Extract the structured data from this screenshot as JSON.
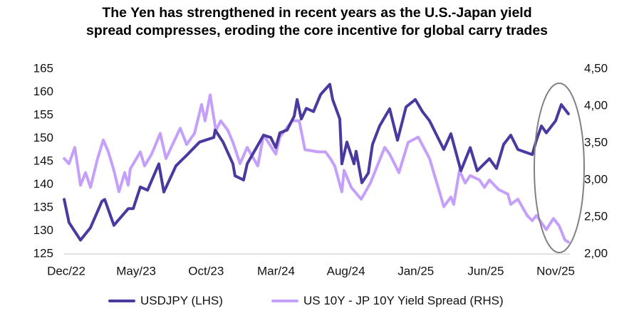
{
  "chart_data": {
    "type": "line",
    "title_lines": [
      "The Yen has strengthened in recent years as the U.S.-Japan yield",
      "spread compresses, eroding the core incentive for global carry trades"
    ],
    "x_unit": "months since Dec/22",
    "x_ticks": [
      {
        "t": 0,
        "label": "Dec/22"
      },
      {
        "t": 5,
        "label": "May/23"
      },
      {
        "t": 10,
        "label": "Oct/23"
      },
      {
        "t": 15,
        "label": "Mar/24"
      },
      {
        "t": 20,
        "label": "Aug/24"
      },
      {
        "t": 25,
        "label": "Jan/25"
      },
      {
        "t": 30,
        "label": "Jun/25"
      },
      {
        "t": 35,
        "label": "Nov/25"
      }
    ],
    "y_left": {
      "lim": [
        125,
        165
      ],
      "ticks": [
        "125",
        "130",
        "135",
        "140",
        "145",
        "150",
        "155",
        "160",
        "165"
      ]
    },
    "y_right": {
      "lim": [
        2.0,
        4.5
      ],
      "ticks": [
        {
          "v": 2.0,
          "label": "2,00"
        },
        {
          "v": 2.5,
          "label": "2,50"
        },
        {
          "v": 3.0,
          "label": "3,00"
        },
        {
          "v": 3.5,
          "label": "3,50"
        },
        {
          "v": 4.0,
          "label": "4,00"
        },
        {
          "v": 4.5,
          "label": "4,50"
        }
      ]
    },
    "series": [
      {
        "name": "USDJPY (LHS)",
        "axis": "left",
        "color": "#4b39a0",
        "points": [
          [
            -0.15,
            136.8
          ],
          [
            0.2,
            131.8
          ],
          [
            1.02,
            128
          ],
          [
            1.73,
            130.7
          ],
          [
            2.55,
            136.4
          ],
          [
            2.75,
            136.8
          ],
          [
            3.41,
            131.2
          ],
          [
            4.43,
            134.8
          ],
          [
            4.79,
            134.8
          ],
          [
            5.3,
            139.5
          ],
          [
            5.81,
            138.8
          ],
          [
            6.62,
            144.5
          ],
          [
            6.98,
            138.4
          ],
          [
            7.85,
            144.1
          ],
          [
            8.66,
            146.5
          ],
          [
            9.53,
            149.2
          ],
          [
            10.55,
            150.2
          ],
          [
            10.65,
            151.8
          ],
          [
            11.21,
            149.2
          ],
          [
            11.92,
            144.5
          ],
          [
            12.07,
            141.9
          ],
          [
            12.68,
            141
          ],
          [
            12.94,
            144.5
          ],
          [
            13.6,
            148
          ],
          [
            14.11,
            150.7
          ],
          [
            14.62,
            150.2
          ],
          [
            14.98,
            148
          ],
          [
            15.28,
            151.2
          ],
          [
            15.79,
            151.8
          ],
          [
            16.3,
            154.8
          ],
          [
            16.51,
            158.4
          ],
          [
            16.81,
            154.2
          ],
          [
            17.17,
            156.5
          ],
          [
            17.68,
            155.8
          ],
          [
            18.19,
            159.5
          ],
          [
            18.85,
            161.7
          ],
          [
            19.05,
            158.4
          ],
          [
            19.56,
            154.2
          ],
          [
            19.71,
            144.5
          ],
          [
            20.07,
            149.2
          ],
          [
            20.58,
            144.5
          ],
          [
            20.73,
            147.2
          ],
          [
            21.14,
            140.4
          ],
          [
            21.6,
            142.5
          ],
          [
            21.9,
            148.7
          ],
          [
            22.41,
            152.7
          ],
          [
            23.13,
            156.4
          ],
          [
            23.69,
            149.6
          ],
          [
            24.3,
            156.8
          ],
          [
            24.96,
            158.4
          ],
          [
            25.47,
            155.8
          ],
          [
            25.98,
            153.8
          ],
          [
            26.49,
            150.7
          ],
          [
            27,
            147.6
          ],
          [
            27.51,
            151
          ],
          [
            28.22,
            143
          ],
          [
            28.89,
            148
          ],
          [
            29.39,
            143
          ],
          [
            30.26,
            145.6
          ],
          [
            30.77,
            143.5
          ],
          [
            31.28,
            148.7
          ],
          [
            31.79,
            150.7
          ],
          [
            32.3,
            147.6
          ],
          [
            33.32,
            146.5
          ],
          [
            33.62,
            149.6
          ],
          [
            33.98,
            152.7
          ],
          [
            34.33,
            151.2
          ],
          [
            35,
            153.8
          ],
          [
            35.4,
            157.3
          ],
          [
            35.91,
            155.3
          ]
        ]
      },
      {
        "name": "US 10Y - JP 10Y Yield Spread (RHS)",
        "axis": "right",
        "color": "#c4a0fb",
        "points": [
          [
            -0.15,
            3.29
          ],
          [
            0.2,
            3.22
          ],
          [
            0.61,
            3.44
          ],
          [
            1.02,
            2.93
          ],
          [
            1.38,
            3.1
          ],
          [
            1.73,
            2.9
          ],
          [
            2.24,
            3.29
          ],
          [
            2.65,
            3.54
          ],
          [
            3.01,
            3.38
          ],
          [
            3.41,
            3.13
          ],
          [
            3.77,
            2.84
          ],
          [
            4.18,
            3.1
          ],
          [
            4.43,
            2.93
          ],
          [
            4.58,
            3.15
          ],
          [
            5.3,
            3.38
          ],
          [
            5.6,
            3.19
          ],
          [
            6.11,
            3.35
          ],
          [
            6.72,
            3.63
          ],
          [
            7.13,
            3.29
          ],
          [
            8.15,
            3.7
          ],
          [
            8.61,
            3.48
          ],
          [
            9.17,
            3.63
          ],
          [
            9.68,
            4.02
          ],
          [
            9.93,
            3.8
          ],
          [
            10.29,
            4.15
          ],
          [
            10.7,
            3.67
          ],
          [
            11.05,
            3.8
          ],
          [
            11.56,
            3.67
          ],
          [
            11.92,
            3.51
          ],
          [
            12.43,
            3.22
          ],
          [
            12.94,
            3.44
          ],
          [
            13.7,
            3.19
          ],
          [
            14.11,
            3.61
          ],
          [
            14.98,
            3.35
          ],
          [
            15.28,
            3.58
          ],
          [
            16.15,
            3.8
          ],
          [
            16.66,
            3.8
          ],
          [
            17.07,
            3.41
          ],
          [
            18.03,
            3.38
          ],
          [
            18.54,
            3.38
          ],
          [
            18.85,
            3.3
          ],
          [
            19.2,
            3.19
          ],
          [
            19.71,
            2.84
          ],
          [
            19.87,
            3.13
          ],
          [
            20.38,
            2.9
          ],
          [
            21.09,
            2.74
          ],
          [
            21.75,
            2.96
          ],
          [
            22.77,
            3.44
          ],
          [
            23.13,
            3.35
          ],
          [
            23.79,
            3.1
          ],
          [
            24.45,
            3.51
          ],
          [
            25.17,
            3.58
          ],
          [
            25.98,
            3.29
          ],
          [
            26.69,
            2.84
          ],
          [
            27,
            2.64
          ],
          [
            27.51,
            2.77
          ],
          [
            27.71,
            2.67
          ],
          [
            28.12,
            3.13
          ],
          [
            28.53,
            2.96
          ],
          [
            28.89,
            3.06
          ],
          [
            29.55,
            3.0
          ],
          [
            29.91,
            2.9
          ],
          [
            30.26,
            3.0
          ],
          [
            30.92,
            2.87
          ],
          [
            31.58,
            2.81
          ],
          [
            31.79,
            2.67
          ],
          [
            32.3,
            2.74
          ],
          [
            32.96,
            2.52
          ],
          [
            33.32,
            2.45
          ],
          [
            33.62,
            2.52
          ],
          [
            34.33,
            2.33
          ],
          [
            34.84,
            2.48
          ],
          [
            35.25,
            2.38
          ],
          [
            35.66,
            2.19
          ],
          [
            35.91,
            2.16
          ]
        ]
      }
    ],
    "annotation": {
      "type": "ellipse",
      "color": "#808080",
      "around": "Sep/25–Dec/25 divergence"
    },
    "grid": false,
    "legend_position": "bottom"
  }
}
